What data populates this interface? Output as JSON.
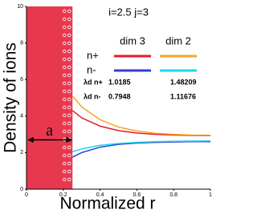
{
  "chart_data": {
    "type": "line",
    "title": "i=2.5 j=3",
    "xlabel": "Normalized r",
    "ylabel": "Density of ions",
    "x": [
      0.25,
      0.3,
      0.4,
      0.5,
      0.6,
      0.7,
      0.8,
      0.9,
      1.0
    ],
    "series": [
      {
        "color": "#e8192c",
        "values": [
          4.3,
          3.9,
          3.45,
          3.2,
          3.07,
          3.0,
          2.96,
          2.94,
          2.93
        ]
      },
      {
        "color": "#f5a623",
        "values": [
          5.1,
          4.5,
          3.8,
          3.4,
          3.18,
          3.06,
          3.0,
          2.96,
          2.95
        ]
      },
      {
        "color": "#2f3fd6",
        "values": [
          1.75,
          2.0,
          2.3,
          2.45,
          2.52,
          2.56,
          2.58,
          2.6,
          2.6
        ]
      },
      {
        "color": "#1ad8e0",
        "values": [
          2.05,
          2.2,
          2.4,
          2.5,
          2.56,
          2.6,
          2.62,
          2.63,
          2.64
        ]
      }
    ],
    "legend": {
      "columns": [
        "dim 3",
        "dim 2"
      ],
      "rows": [
        "n+",
        "n-"
      ]
    },
    "lambda_table": [
      {
        "label": "λd n+",
        "values": [
          1.0185,
          1.48209
        ]
      },
      {
        "label": "λd n-",
        "values": [
          0.7948,
          1.11676
        ]
      }
    ],
    "shaded_region": {
      "xlim": [
        0,
        0.25
      ],
      "color": "#e8384f"
    },
    "annotation": {
      "text": "a",
      "x": [
        0,
        0.25
      ],
      "y": 2.7
    },
    "xlim": [
      0,
      1
    ],
    "xticks": [
      0,
      0.2,
      0.4,
      0.6,
      0.8,
      1
    ],
    "ylim": [
      0,
      10
    ],
    "yticks": [
      0,
      2,
      4,
      6,
      8,
      10
    ]
  }
}
